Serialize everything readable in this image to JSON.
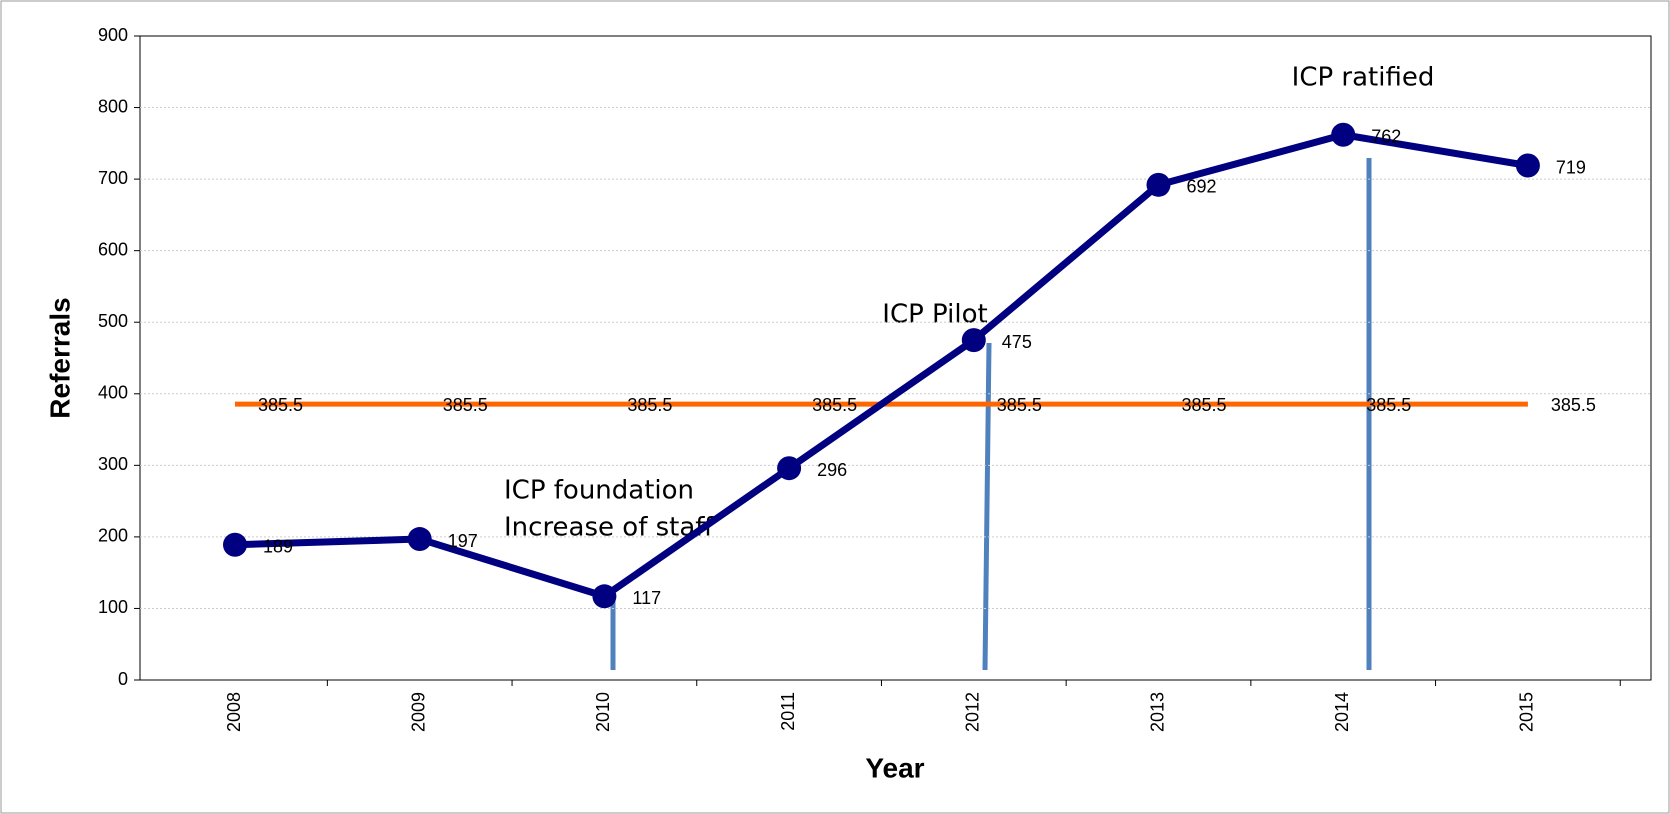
{
  "chart_data": {
    "type": "line",
    "categories": [
      "2008",
      "2009",
      "2010",
      "2011",
      "2012",
      "2013",
      "2014",
      "2015"
    ],
    "series": [
      {
        "color": "#000080",
        "values": [
          189,
          197,
          117,
          296,
          475,
          692,
          762,
          719
        ]
      },
      {
        "color": "#ff6600",
        "values": [
          385.5,
          385.5,
          385.5,
          385.5,
          385.5,
          385.5,
          385.5,
          385.5
        ]
      }
    ],
    "ylim": [
      0,
      900
    ],
    "yticks": [
      0,
      100,
      200,
      300,
      400,
      500,
      600,
      700,
      800,
      900
    ],
    "grid": true,
    "y_label": "Referrals",
    "x_label": "Year",
    "annotations": [
      "ICP foundation",
      "Increase of staff",
      "ICP Pilot",
      "ICP ratified"
    ]
  }
}
